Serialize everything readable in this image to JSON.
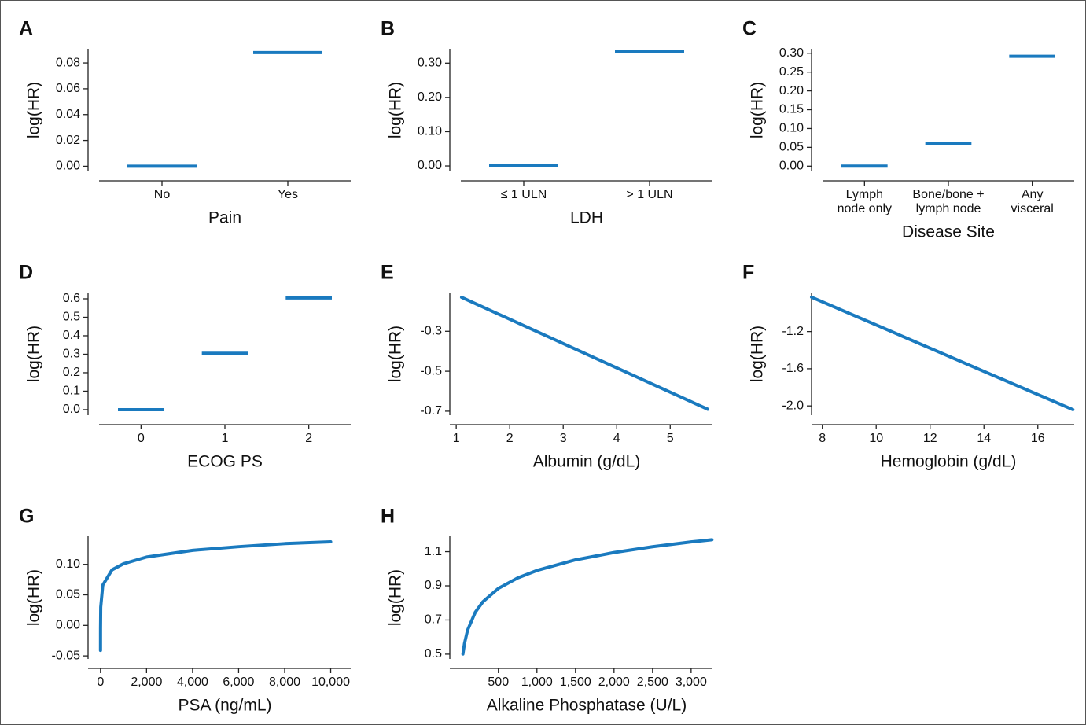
{
  "chart_data": [
    {
      "type": "level",
      "title": "A",
      "ylabel": "log(HR)",
      "xlabel": "Pain",
      "color": "#1a7abf",
      "categories": [
        "No",
        "Yes"
      ],
      "values": [
        0,
        0.088
      ],
      "ylim": [
        -0.004,
        0.091
      ],
      "yticks": [
        {
          "value": 0,
          "label": "0.00"
        },
        0.02,
        0.04,
        0.06,
        0.08
      ]
    },
    {
      "type": "level",
      "title": "B",
      "ylabel": "log(HR)",
      "xlabel": "LDH",
      "color": "#1a7abf",
      "categories": [
        "≤ 1 ULN",
        "> 1 ULN"
      ],
      "values": [
        0,
        0.333
      ],
      "ylim": [
        -0.016,
        0.342
      ],
      "yticks": [
        {
          "value": 0,
          "label": "0.00"
        },
        {
          "value": 0.1,
          "label": "0.10"
        },
        {
          "value": 0.2,
          "label": "0.20"
        },
        {
          "value": 0.3,
          "label": "0.30"
        }
      ]
    },
    {
      "type": "level",
      "title": "C",
      "ylabel": "log(HR)",
      "xlabel": "Disease Site",
      "color": "#1a7abf",
      "categories": [
        "Lymph\nnode only",
        "Bone/bone +\nlymph node",
        "Any\nvisceral"
      ],
      "values": [
        0,
        0.06,
        0.292
      ],
      "ylim": [
        -0.014,
        0.312
      ],
      "yticks": [
        {
          "value": 0,
          "label": "0.00"
        },
        0.05,
        {
          "value": 0.1,
          "label": "0.10"
        },
        0.15,
        {
          "value": 0.2,
          "label": "0.20"
        },
        0.25,
        {
          "value": 0.3,
          "label": "0.30"
        }
      ]
    },
    {
      "type": "level",
      "title": "D",
      "ylabel": "log(HR)",
      "xlabel": "ECOG PS",
      "color": "#1a7abf",
      "categories": [
        "0",
        "1",
        "2"
      ],
      "values": [
        0,
        0.305,
        0.605
      ],
      "ylim": [
        -0.03,
        0.634
      ],
      "yticks": [
        {
          "value": 0,
          "label": "0.0"
        },
        0.1,
        0.2,
        0.3,
        0.4,
        0.5,
        0.6
      ]
    },
    {
      "type": "line",
      "title": "E",
      "ylabel": "log(HR)",
      "xlabel": "Albumin (g/dL)",
      "color": "#1a7abf",
      "x": [
        1.1,
        5.7
      ],
      "values": [
        -0.13,
        -0.69
      ],
      "xlim": [
        0.88,
        5.79
      ],
      "xticks": [
        1,
        2,
        3,
        4,
        5
      ],
      "ylim": [
        -0.72,
        -0.106
      ],
      "yticks": [
        -0.7,
        -0.5,
        -0.3
      ]
    },
    {
      "type": "line",
      "title": "F",
      "ylabel": "log(HR)",
      "xlabel": "Hemoglobin (g/dL)",
      "color": "#1a7abf",
      "x": [
        7.6,
        17.3
      ],
      "values": [
        -0.83,
        -2.04
      ],
      "xlim": [
        7.6,
        17.35
      ],
      "xticks": [
        8,
        10,
        12,
        14,
        16
      ],
      "ylim": [
        -2.1,
        -0.78
      ],
      "yticks": [
        {
          "value": -2,
          "label": "-2.0"
        },
        -1.6,
        -1.2
      ]
    },
    {
      "type": "line",
      "title": "G",
      "ylabel": "log(HR)",
      "xlabel": "PSA (ng/mL)",
      "color": "#1a7abf",
      "x": [
        0.1,
        1,
        10,
        100,
        500,
        1000,
        2000,
        4000,
        6000,
        8000,
        10000
      ],
      "values": [
        -0.041,
        -0.006,
        0.03,
        0.066,
        0.091,
        0.101,
        0.112,
        0.123,
        0.129,
        0.134,
        0.137
      ],
      "xlim": [
        -540,
        10870
      ],
      "xticks": [
        0,
        {
          "value": 2000,
          "label": "2,000"
        },
        {
          "value": 4000,
          "label": "4,000"
        },
        {
          "value": 6000,
          "label": "6,000"
        },
        {
          "value": 8000,
          "label": "8,000"
        },
        {
          "value": 10000,
          "label": "10,000"
        }
      ],
      "ylim": [
        -0.055,
        0.146
      ],
      "yticks": [
        -0.05,
        {
          "value": 0,
          "label": "0.00"
        },
        0.05,
        {
          "value": 0.1,
          "label": "0.10"
        }
      ]
    },
    {
      "type": "line",
      "title": "H",
      "ylabel": "log(HR)",
      "xlabel": "Alkaline Phosphatase (U/L)",
      "color": "#1a7abf",
      "x": [
        40,
        60,
        100,
        200,
        300,
        500,
        750,
        1000,
        1500,
        2000,
        2500,
        3000,
        3270
      ],
      "values": [
        0.501,
        0.562,
        0.64,
        0.745,
        0.807,
        0.885,
        0.946,
        0.99,
        1.052,
        1.095,
        1.129,
        1.157,
        1.17
      ],
      "xlim": [
        -130,
        3277
      ],
      "xticks": [
        500,
        {
          "value": 1000,
          "label": "1,000"
        },
        {
          "value": 1500,
          "label": "1,500"
        },
        {
          "value": 2000,
          "label": "2,000"
        },
        {
          "value": 2500,
          "label": "2,500"
        },
        {
          "value": 3000,
          "label": "3,000"
        }
      ],
      "ylim": [
        0.472,
        1.19
      ],
      "yticks": [
        0.5,
        0.7,
        0.9,
        1.1
      ]
    }
  ]
}
